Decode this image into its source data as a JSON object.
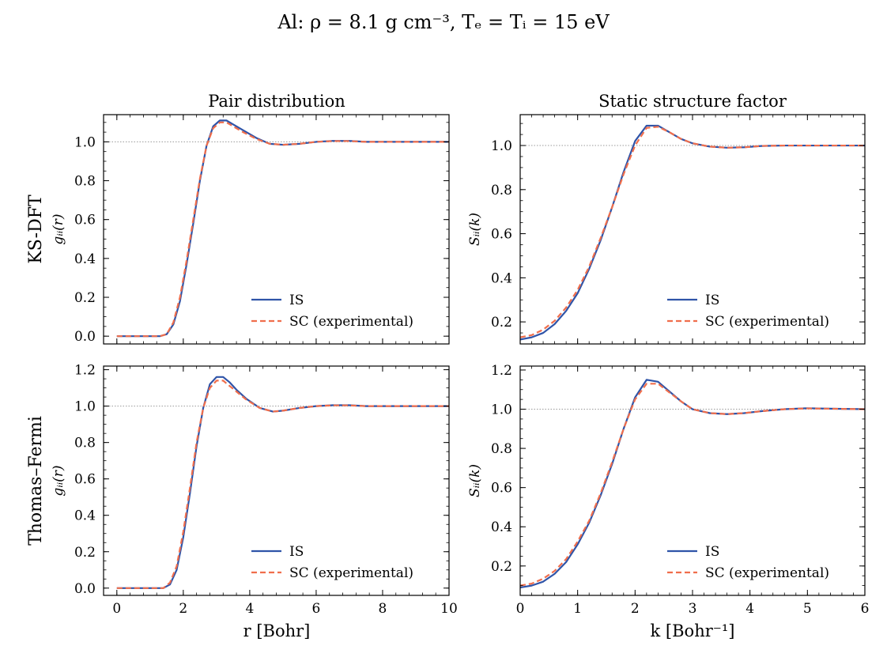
{
  "figure": {
    "suptitle": "Al: ρ = 8.1 g cm⁻³, Tₑ = Tᵢ = 15 eV",
    "column_titles": [
      "Pair distribution",
      "Static structure factor"
    ],
    "row_labels": [
      "KS-DFT",
      "Thomas–Fermi"
    ],
    "xlabels": [
      "r [Bohr]",
      "k [Bohr⁻¹]"
    ],
    "ylabels": [
      "gᵢᵢ(r)",
      "Sᵢᵢ(k)"
    ],
    "colors": {
      "IS": "#2f54a8",
      "SC": "#f06e4c",
      "reference": "#999999"
    }
  },
  "chart_data": [
    {
      "type": "line",
      "panel": "top-left",
      "title": "Pair distribution",
      "row_label": "KS-DFT",
      "xlabel": "",
      "ylabel": "gᵢᵢ(r)",
      "xlim": [
        -0.4,
        10
      ],
      "ylim": [
        -0.04,
        1.14
      ],
      "xticks": [
        0,
        2,
        4,
        6,
        8,
        10
      ],
      "xticklabels": [],
      "yticks": [
        0.0,
        0.2,
        0.4,
        0.6,
        0.8,
        1.0
      ],
      "yticklabels": [
        "0.0",
        "0.2",
        "0.4",
        "0.6",
        "0.8",
        "1.0"
      ],
      "reference_y": 1.0,
      "legend": "lower-right",
      "series": [
        {
          "name": "IS",
          "style": "solid",
          "x": [
            0.0,
            1.0,
            1.3,
            1.5,
            1.7,
            1.9,
            2.1,
            2.3,
            2.5,
            2.7,
            2.9,
            3.1,
            3.3,
            3.5,
            3.8,
            4.2,
            4.6,
            5.0,
            5.5,
            6.0,
            6.5,
            7.0,
            7.5,
            8.0,
            9.0,
            10.0
          ],
          "y": [
            0.0,
            0.0,
            0.0,
            0.01,
            0.06,
            0.18,
            0.37,
            0.58,
            0.8,
            0.98,
            1.08,
            1.11,
            1.11,
            1.09,
            1.06,
            1.02,
            0.99,
            0.985,
            0.99,
            1.0,
            1.005,
            1.005,
            1.0,
            1.0,
            1.0,
            1.0
          ]
        },
        {
          "name": "SC (experimental)",
          "style": "dashed",
          "x": [
            0.0,
            1.0,
            1.3,
            1.5,
            1.7,
            1.9,
            2.1,
            2.3,
            2.5,
            2.7,
            2.9,
            3.1,
            3.3,
            3.5,
            3.8,
            4.2,
            4.6,
            5.0,
            5.5,
            6.0,
            6.5,
            7.0,
            7.5,
            8.0,
            9.0,
            10.0
          ],
          "y": [
            0.0,
            0.0,
            0.0,
            0.01,
            0.07,
            0.2,
            0.39,
            0.6,
            0.81,
            0.98,
            1.07,
            1.1,
            1.1,
            1.08,
            1.05,
            1.015,
            0.99,
            0.985,
            0.99,
            1.0,
            1.004,
            1.004,
            1.0,
            1.0,
            1.0,
            1.0
          ]
        }
      ]
    },
    {
      "type": "line",
      "panel": "top-right",
      "title": "Static structure factor",
      "row_label": "",
      "xlabel": "",
      "ylabel": "Sᵢᵢ(k)",
      "xlim": [
        0,
        6
      ],
      "ylim": [
        0.1,
        1.14
      ],
      "xticks": [
        0,
        1,
        2,
        3,
        4,
        5,
        6
      ],
      "xticklabels": [],
      "yticks": [
        0.2,
        0.4,
        0.6,
        0.8,
        1.0
      ],
      "yticklabels": [
        "0.2",
        "0.4",
        "0.6",
        "0.8",
        "1.0"
      ],
      "reference_y": 1.0,
      "legend": "lower-right",
      "series": [
        {
          "name": "IS",
          "style": "solid",
          "x": [
            0.0,
            0.2,
            0.4,
            0.6,
            0.8,
            1.0,
            1.2,
            1.4,
            1.6,
            1.8,
            2.0,
            2.2,
            2.4,
            2.6,
            2.8,
            3.0,
            3.3,
            3.6,
            3.9,
            4.2,
            4.6,
            5.0,
            5.5,
            6.0
          ],
          "y": [
            0.12,
            0.13,
            0.15,
            0.19,
            0.25,
            0.33,
            0.44,
            0.57,
            0.72,
            0.88,
            1.02,
            1.09,
            1.09,
            1.06,
            1.03,
            1.01,
            0.995,
            0.99,
            0.992,
            0.998,
            1.0,
            1.0,
            1.0,
            1.0
          ]
        },
        {
          "name": "SC (experimental)",
          "style": "dashed",
          "x": [
            0.0,
            0.2,
            0.4,
            0.6,
            0.8,
            1.0,
            1.2,
            1.4,
            1.6,
            1.8,
            2.0,
            2.2,
            2.4,
            2.6,
            2.8,
            3.0,
            3.3,
            3.6,
            3.9,
            4.2,
            4.6,
            5.0,
            5.5,
            6.0
          ],
          "y": [
            0.13,
            0.14,
            0.165,
            0.205,
            0.265,
            0.345,
            0.45,
            0.58,
            0.72,
            0.87,
            1.0,
            1.08,
            1.085,
            1.06,
            1.03,
            1.01,
            0.995,
            0.99,
            0.992,
            0.998,
            1.0,
            1.0,
            1.0,
            1.0
          ]
        }
      ]
    },
    {
      "type": "line",
      "panel": "bottom-left",
      "title": "",
      "row_label": "Thomas–Fermi",
      "xlabel": "r [Bohr]",
      "ylabel": "gᵢᵢ(r)",
      "xlim": [
        -0.4,
        10
      ],
      "ylim": [
        -0.04,
        1.22
      ],
      "xticks": [
        0,
        2,
        4,
        6,
        8,
        10
      ],
      "xticklabels": [
        "0",
        "2",
        "4",
        "6",
        "8",
        "10"
      ],
      "yticks": [
        0.0,
        0.2,
        0.4,
        0.6,
        0.8,
        1.0,
        1.2
      ],
      "yticklabels": [
        "0.0",
        "0.2",
        "0.4",
        "0.6",
        "0.8",
        "1.0",
        "1.2"
      ],
      "reference_y": 1.0,
      "legend": "lower-right",
      "series": [
        {
          "name": "IS",
          "style": "solid",
          "x": [
            0.0,
            1.0,
            1.4,
            1.6,
            1.8,
            2.0,
            2.2,
            2.4,
            2.6,
            2.8,
            3.0,
            3.2,
            3.4,
            3.6,
            3.9,
            4.3,
            4.7,
            5.0,
            5.5,
            6.0,
            6.5,
            7.0,
            7.5,
            8.0,
            9.0,
            10.0
          ],
          "y": [
            0.0,
            0.0,
            0.0,
            0.02,
            0.1,
            0.28,
            0.52,
            0.78,
            0.99,
            1.12,
            1.16,
            1.16,
            1.13,
            1.09,
            1.04,
            0.99,
            0.97,
            0.975,
            0.99,
            1.0,
            1.005,
            1.005,
            1.0,
            1.0,
            1.0,
            1.0
          ]
        },
        {
          "name": "SC (experimental)",
          "style": "dashed",
          "x": [
            0.0,
            1.0,
            1.4,
            1.6,
            1.8,
            2.0,
            2.2,
            2.4,
            2.6,
            2.8,
            3.0,
            3.2,
            3.4,
            3.6,
            3.9,
            4.3,
            4.7,
            5.0,
            5.5,
            6.0,
            6.5,
            7.0,
            7.5,
            8.0,
            9.0,
            10.0
          ],
          "y": [
            0.0,
            0.0,
            0.0,
            0.03,
            0.12,
            0.31,
            0.55,
            0.8,
            0.99,
            1.1,
            1.14,
            1.14,
            1.11,
            1.08,
            1.035,
            0.99,
            0.97,
            0.975,
            0.99,
            1.0,
            1.004,
            1.004,
            1.0,
            1.0,
            1.0,
            1.0
          ]
        }
      ]
    },
    {
      "type": "line",
      "panel": "bottom-right",
      "title": "",
      "row_label": "",
      "xlabel": "k [Bohr⁻¹]",
      "ylabel": "Sᵢᵢ(k)",
      "xlim": [
        0,
        6
      ],
      "ylim": [
        0.05,
        1.22
      ],
      "xticks": [
        0,
        1,
        2,
        3,
        4,
        5,
        6
      ],
      "xticklabels": [
        "0",
        "1",
        "2",
        "3",
        "4",
        "5",
        "6"
      ],
      "yticks": [
        0.2,
        0.4,
        0.6,
        0.8,
        1.0,
        1.2
      ],
      "yticklabels": [
        "0.2",
        "0.4",
        "0.6",
        "0.8",
        "1.0",
        "1.2"
      ],
      "reference_y": 1.0,
      "legend": "lower-right",
      "series": [
        {
          "name": "IS",
          "style": "solid",
          "x": [
            0.0,
            0.2,
            0.4,
            0.6,
            0.8,
            1.0,
            1.2,
            1.4,
            1.6,
            1.8,
            2.0,
            2.2,
            2.4,
            2.6,
            2.8,
            3.0,
            3.3,
            3.6,
            3.9,
            4.2,
            4.6,
            5.0,
            5.5,
            6.0
          ],
          "y": [
            0.09,
            0.1,
            0.12,
            0.16,
            0.22,
            0.31,
            0.42,
            0.56,
            0.72,
            0.9,
            1.06,
            1.15,
            1.14,
            1.09,
            1.04,
            1.0,
            0.98,
            0.975,
            0.98,
            0.99,
            1.0,
            1.005,
            1.002,
            1.0
          ]
        },
        {
          "name": "SC (experimental)",
          "style": "dashed",
          "x": [
            0.0,
            0.2,
            0.4,
            0.6,
            0.8,
            1.0,
            1.2,
            1.4,
            1.6,
            1.8,
            2.0,
            2.2,
            2.4,
            2.6,
            2.8,
            3.0,
            3.3,
            3.6,
            3.9,
            4.2,
            4.6,
            5.0,
            5.5,
            6.0
          ],
          "y": [
            0.1,
            0.11,
            0.135,
            0.175,
            0.235,
            0.325,
            0.43,
            0.57,
            0.73,
            0.9,
            1.05,
            1.13,
            1.13,
            1.085,
            1.04,
            1.0,
            0.98,
            0.975,
            0.98,
            0.99,
            1.0,
            1.004,
            1.002,
            1.0
          ]
        }
      ]
    }
  ]
}
